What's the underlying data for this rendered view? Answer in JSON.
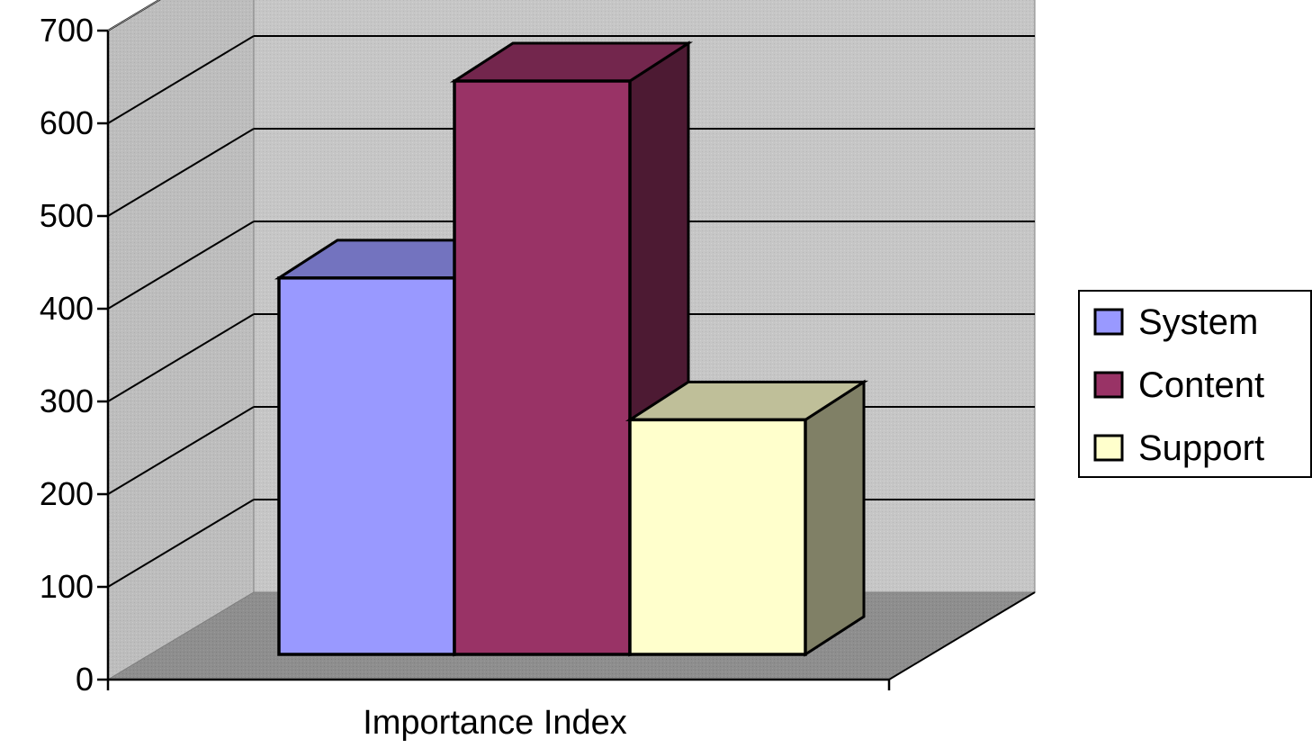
{
  "chart_data": {
    "type": "bar",
    "style": "3d-clustered-column",
    "categories": [
      "Importance Index"
    ],
    "xlabel": "Importance Index",
    "ylabel": "",
    "title": "",
    "ylim": [
      0,
      700
    ],
    "yticks": [
      0,
      100,
      200,
      300,
      400,
      500,
      600,
      700
    ],
    "grid": true,
    "legend_position": "right",
    "series": [
      {
        "name": "System",
        "values": [
          430
        ],
        "color": "#9999ff"
      },
      {
        "name": "Content",
        "values": [
          655
        ],
        "color": "#993366"
      },
      {
        "name": "Support",
        "values": [
          268
        ],
        "color": "#ffffcc"
      }
    ]
  }
}
